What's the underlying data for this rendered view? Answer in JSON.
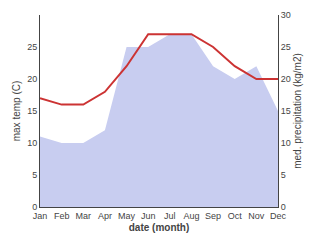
{
  "chart_data": {
    "type": "line",
    "categories": [
      "Jan",
      "Feb",
      "Mar",
      "Apr",
      "May",
      "Jun",
      "Jul",
      "Aug",
      "Sep",
      "Oct",
      "Nov",
      "Dec"
    ],
    "series": [
      {
        "type": "area",
        "axis": "y2",
        "color": "#c8cdf0",
        "values": [
          11,
          10,
          10,
          12,
          25,
          25,
          27,
          27,
          22,
          20,
          22,
          15
        ]
      },
      {
        "type": "line",
        "color": "#cc3333",
        "values": [
          17,
          16,
          16,
          18,
          22,
          27,
          27,
          27,
          25,
          22,
          20,
          20
        ]
      }
    ],
    "xlabel": "date (month)",
    "ylabel": "max temp (C)",
    "y2label": "med. precipitation (kg/m2)",
    "ylim": [
      0,
      30
    ],
    "yticks": [
      0,
      5,
      10,
      15,
      20,
      25
    ],
    "y2lim": [
      0,
      30
    ],
    "y2ticks": [
      0,
      5,
      10,
      15,
      20,
      25,
      30
    ],
    "grid": false
  }
}
